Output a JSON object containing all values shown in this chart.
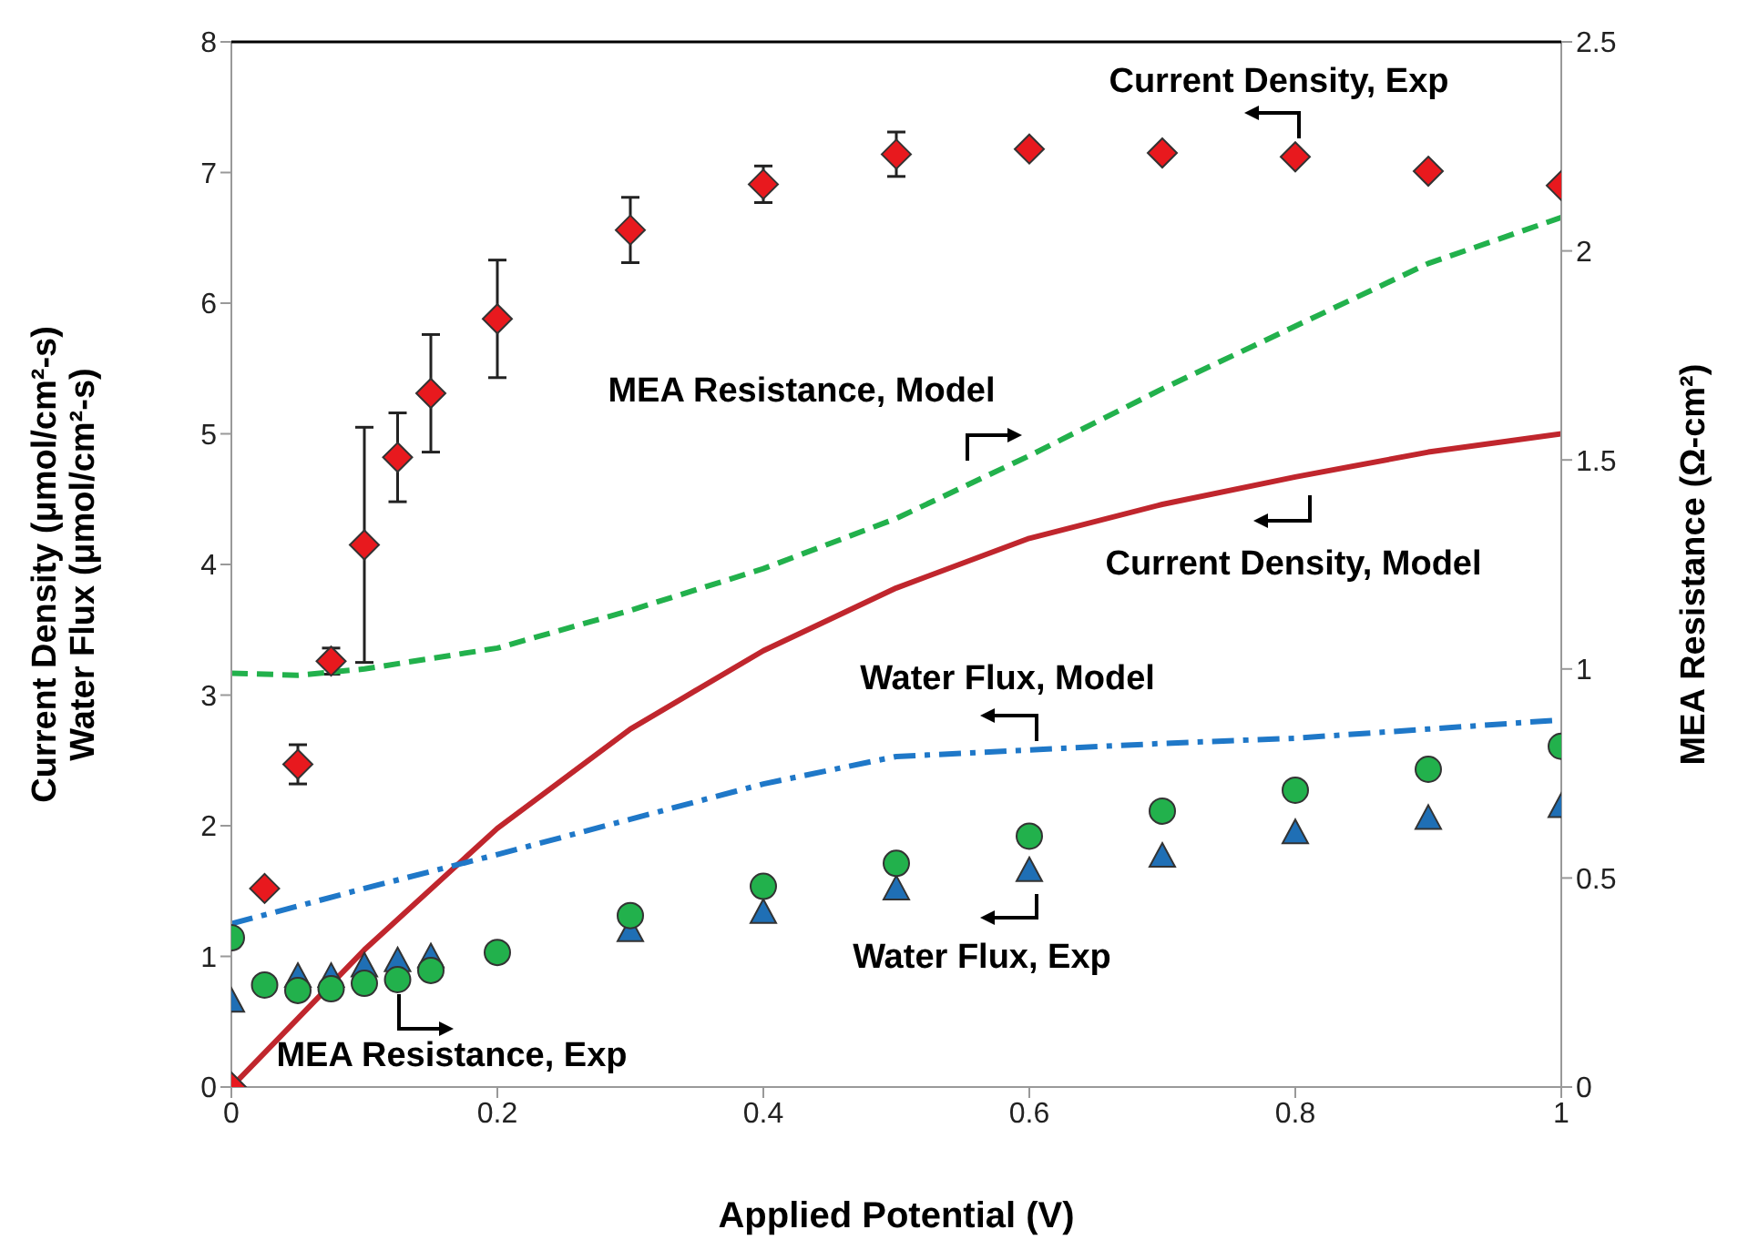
{
  "chart_data": {
    "type": "scatter",
    "xlabel": "Applied Potential (V)",
    "ylabel": "Current Density (μmol/cm²-s)\nWater Flux (μmol/cm²-s)",
    "y2label": "MEA Resistance (Ω-cm²)",
    "xlim": [
      0,
      1
    ],
    "xticks": [
      0,
      0.2,
      0.4,
      0.6,
      0.8,
      1
    ],
    "ylim": [
      0,
      8
    ],
    "yticks": [
      0,
      1,
      2,
      3,
      4,
      5,
      6,
      7,
      8
    ],
    "y2lim": [
      0,
      2.5
    ],
    "y2ticks": [
      0,
      0.5,
      1,
      1.5,
      2,
      2.5
    ],
    "grid": false,
    "legend": false,
    "series": [
      {
        "name": "Current Density, Exp",
        "color": "#e8191e",
        "marker": "diamond",
        "x": [
          0,
          0.025,
          0.05,
          0.075,
          0.1,
          0.125,
          0.15,
          0.2,
          0.3,
          0.4,
          0.5,
          0.6,
          0.7,
          0.8,
          0.9,
          1
        ],
        "values": [
          0,
          1.52,
          2.47,
          3.26,
          4.15,
          4.82,
          5.31,
          5.88,
          6.56,
          6.91,
          7.14,
          7.18,
          7.15,
          7.12,
          7.01,
          6.9
        ],
        "errors": [
          null,
          null,
          0.15,
          0.1,
          0.9,
          0.34,
          0.45,
          0.45,
          0.25,
          0.14,
          0.17,
          null,
          null,
          null,
          null,
          null
        ]
      },
      {
        "name": "Water Flux, Exp",
        "color": "#1f6fb5",
        "marker": "triangle",
        "x": [
          0,
          0.025,
          0.05,
          0.075,
          0.1,
          0.125,
          0.15,
          0.2,
          0.3,
          0.4,
          0.5,
          0.6,
          0.7,
          0.8,
          0.9,
          1
        ],
        "values": [
          0.66,
          null,
          0.85,
          0.85,
          0.93,
          0.97,
          1.0,
          null,
          1.2,
          1.34,
          1.52,
          1.66,
          1.77,
          1.95,
          2.06,
          2.15
        ]
      },
      {
        "name": "MEA Resistance, Exp",
        "color": "#22b14c",
        "marker": "circle",
        "axis": "y2",
        "x": [
          0,
          0.025,
          0.05,
          0.075,
          0.1,
          0.125,
          0.15,
          0.2,
          0.3,
          0.4,
          0.5,
          0.6,
          0.7,
          0.8,
          0.9,
          1
        ],
        "values": [
          0.357,
          0.244,
          0.231,
          0.235,
          0.248,
          0.257,
          0.279,
          0.322,
          0.41,
          0.48,
          0.535,
          0.6,
          0.66,
          0.71,
          0.76,
          0.815
        ]
      },
      {
        "type": "line",
        "name": "Current Density, Model",
        "color": "#c0262d",
        "line_style": "solid",
        "x": [
          0,
          0.1,
          0.2,
          0.3,
          0.4,
          0.5,
          0.6,
          0.7,
          0.8,
          0.9,
          1
        ],
        "values": [
          0,
          1.05,
          1.98,
          2.74,
          3.34,
          3.82,
          4.2,
          4.46,
          4.67,
          4.86,
          5.0
        ]
      },
      {
        "type": "line",
        "name": "Water Flux, Model",
        "color": "#1f78c8",
        "line_style": "dashdot",
        "x": [
          0,
          0.1,
          0.2,
          0.3,
          0.4,
          0.5,
          0.6,
          0.7,
          0.8,
          0.9,
          1
        ],
        "values": [
          1.25,
          1.52,
          1.78,
          2.05,
          2.32,
          2.53,
          2.58,
          2.63,
          2.67,
          2.74,
          2.81
        ]
      },
      {
        "type": "line",
        "name": "MEA Resistance, Model",
        "color": "#22b14c",
        "line_style": "dashed",
        "axis": "y2",
        "x": [
          0,
          0.05,
          0.1,
          0.2,
          0.3,
          0.4,
          0.5,
          0.6,
          0.7,
          0.8,
          0.9,
          1
        ],
        "values": [
          0.99,
          0.985,
          1.0,
          1.05,
          1.14,
          1.24,
          1.36,
          1.51,
          1.67,
          1.82,
          1.97,
          2.08
        ]
      }
    ]
  }
}
